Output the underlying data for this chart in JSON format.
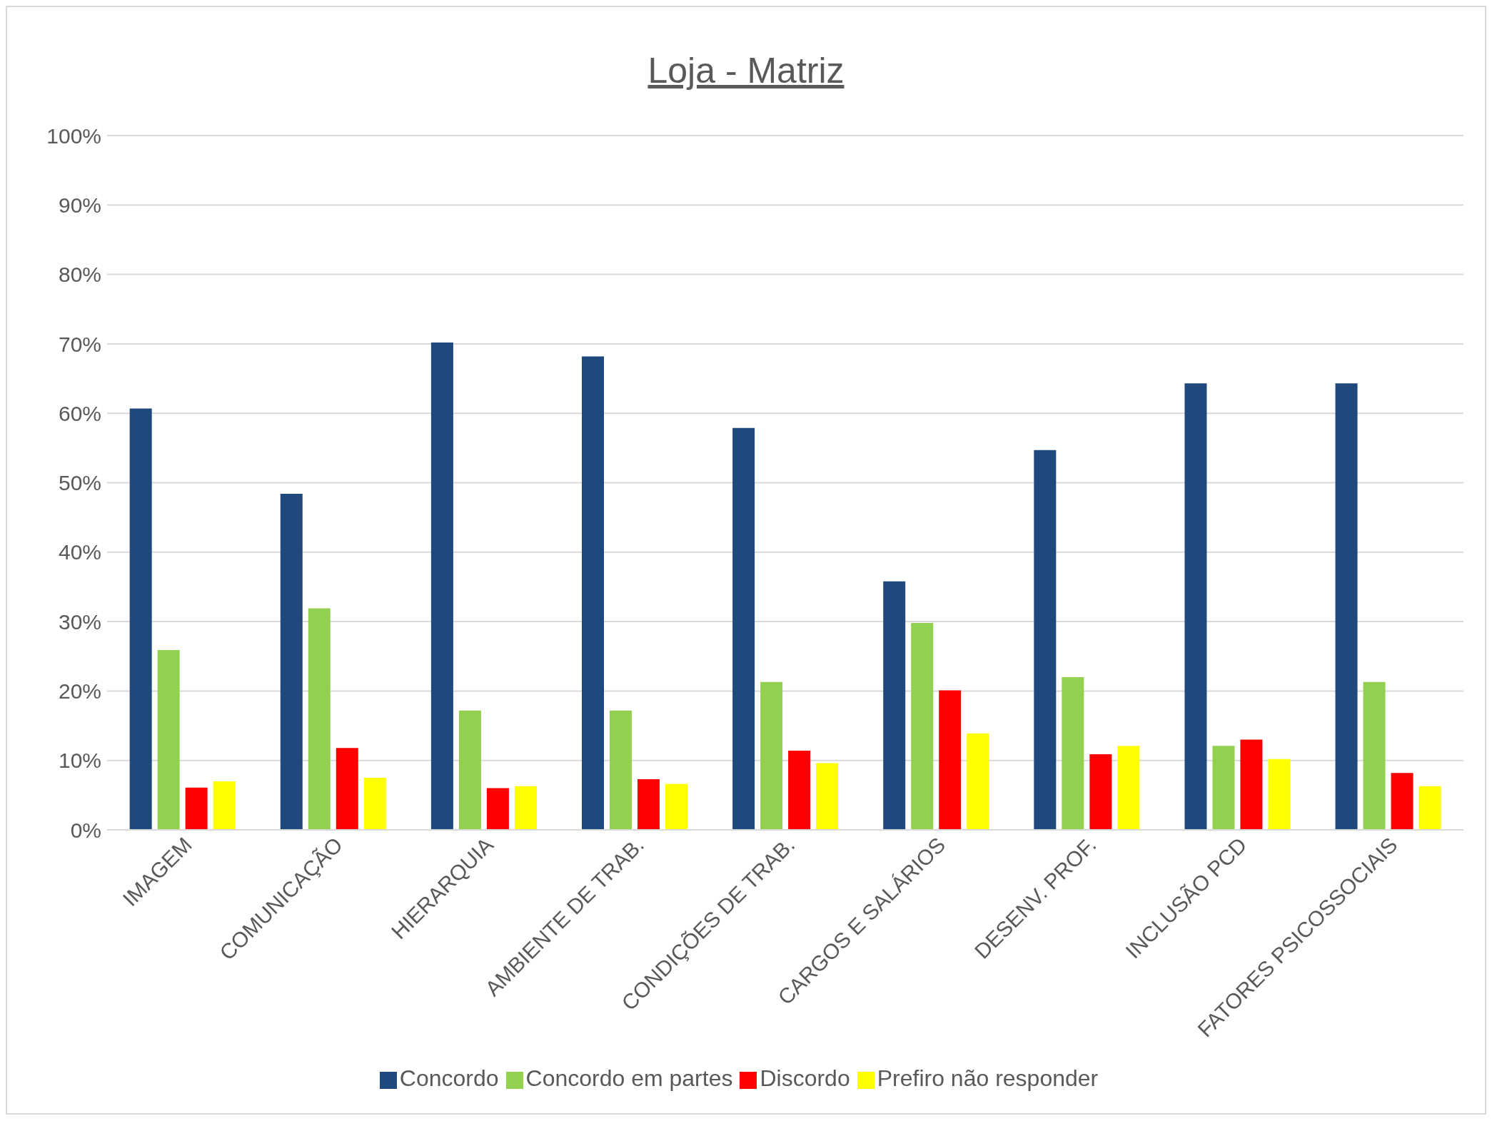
{
  "chart_data": {
    "type": "bar",
    "title": "Loja - Matriz",
    "categories": [
      "IMAGEM",
      "COMUNICAÇÃO",
      "HIERARQUIA",
      "AMBIENTE DE TRAB.",
      "CONDIÇÕES DE TRAB.",
      "CARGOS E SALÁRIOS",
      "DESENV. PROF.",
      "INCLUSÃO PCD",
      "FATORES PSICOSSOCIAIS"
    ],
    "series": [
      {
        "name": "Concordo",
        "color": "#1f497d",
        "values": [
          60.7,
          48.4,
          70.2,
          68.2,
          57.9,
          35.8,
          54.7,
          64.3,
          64.3
        ]
      },
      {
        "name": "Concordo em partes",
        "color": "#92d050",
        "values": [
          25.9,
          31.9,
          17.2,
          17.2,
          21.3,
          29.8,
          22.0,
          12.1,
          21.3
        ]
      },
      {
        "name": "Discordo",
        "color": "#ff0000",
        "values": [
          6.1,
          11.8,
          6.0,
          7.3,
          11.4,
          20.1,
          10.9,
          13.0,
          8.2
        ]
      },
      {
        "name": "Prefiro não responder",
        "color": "#ffff00",
        "values": [
          7.0,
          7.5,
          6.3,
          6.6,
          9.6,
          13.9,
          12.1,
          10.2,
          6.3
        ]
      }
    ],
    "ylim": [
      0,
      100
    ],
    "yticks": [
      {
        "value": 0,
        "label": "0%"
      },
      {
        "value": 10,
        "label": "10%"
      },
      {
        "value": 20,
        "label": "20%"
      },
      {
        "value": 30,
        "label": "30%"
      },
      {
        "value": 40,
        "label": "40%"
      },
      {
        "value": 50,
        "label": "50%"
      },
      {
        "value": 60,
        "label": "60%"
      },
      {
        "value": 70,
        "label": "70%"
      },
      {
        "value": 80,
        "label": "80%"
      },
      {
        "value": 90,
        "label": "90%"
      },
      {
        "value": 100,
        "label": "100%"
      }
    ],
    "grid": "y",
    "legend": "bottom"
  }
}
